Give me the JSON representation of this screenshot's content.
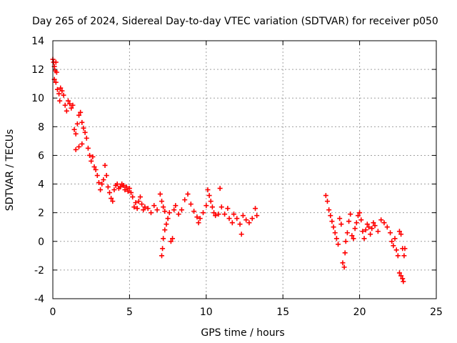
{
  "chart_data": {
    "type": "scatter",
    "title": "Day 265 of 2024, Sidereal Day-to-day VTEC variation (SDTVAR) for receiver p050",
    "xlabel": "GPS time / hours",
    "ylabel": "SDTVAR / TECUs",
    "xlim": [
      0,
      25
    ],
    "ylim": [
      -4,
      14
    ],
    "x_ticks": [
      0,
      5,
      10,
      15,
      20,
      25
    ],
    "x_tick_labels": [
      "0",
      "5",
      "10",
      "15",
      "20",
      "25"
    ],
    "y_ticks": [
      -4,
      -2,
      0,
      2,
      4,
      6,
      8,
      10,
      12,
      14
    ],
    "y_tick_labels": [
      "-4",
      "-2",
      "0",
      "2",
      "4",
      "6",
      "8",
      "10",
      "12",
      "14"
    ],
    "grid": true,
    "marker": "+",
    "marker_color": "#ff0000",
    "series": [
      {
        "name": "SDTVAR",
        "points": [
          [
            0.0,
            12.7
          ],
          [
            0.05,
            12.5
          ],
          [
            0.1,
            12.2
          ],
          [
            0.15,
            11.9
          ],
          [
            0.2,
            12.5
          ],
          [
            0.25,
            11.8
          ],
          [
            0.1,
            11.3
          ],
          [
            0.2,
            11.1
          ],
          [
            0.3,
            10.6
          ],
          [
            0.4,
            10.3
          ],
          [
            0.45,
            9.8
          ],
          [
            0.5,
            10.7
          ],
          [
            0.6,
            10.5
          ],
          [
            0.7,
            10.2
          ],
          [
            0.8,
            9.5
          ],
          [
            0.9,
            9.1
          ],
          [
            1.0,
            9.8
          ],
          [
            1.1,
            9.6
          ],
          [
            1.2,
            9.3
          ],
          [
            1.3,
            9.5
          ],
          [
            1.4,
            7.8
          ],
          [
            1.5,
            7.5
          ],
          [
            1.6,
            8.2
          ],
          [
            1.7,
            8.8
          ],
          [
            1.8,
            9.0
          ],
          [
            1.9,
            8.3
          ],
          [
            2.0,
            7.9
          ],
          [
            1.5,
            6.4
          ],
          [
            1.7,
            6.6
          ],
          [
            1.9,
            6.8
          ],
          [
            2.1,
            7.6
          ],
          [
            2.2,
            7.2
          ],
          [
            2.3,
            6.5
          ],
          [
            2.4,
            6.0
          ],
          [
            2.5,
            5.6
          ],
          [
            2.6,
            5.9
          ],
          [
            2.7,
            5.2
          ],
          [
            2.8,
            5.0
          ],
          [
            2.9,
            4.6
          ],
          [
            3.0,
            4.1
          ],
          [
            3.1,
            3.6
          ],
          [
            3.2,
            4.0
          ],
          [
            3.3,
            4.3
          ],
          [
            3.4,
            5.3
          ],
          [
            3.5,
            4.6
          ],
          [
            3.6,
            3.8
          ],
          [
            3.7,
            3.4
          ],
          [
            3.8,
            3.0
          ],
          [
            3.9,
            2.8
          ],
          [
            4.0,
            3.6
          ],
          [
            4.1,
            3.9
          ],
          [
            4.2,
            4.0
          ],
          [
            4.3,
            3.7
          ],
          [
            4.4,
            3.8
          ],
          [
            4.5,
            4.0
          ],
          [
            4.6,
            3.9
          ],
          [
            4.7,
            3.6
          ],
          [
            4.8,
            3.8
          ],
          [
            4.9,
            3.5
          ],
          [
            5.0,
            3.7
          ],
          [
            5.1,
            3.4
          ],
          [
            5.2,
            3.1
          ],
          [
            5.3,
            2.4
          ],
          [
            5.4,
            2.7
          ],
          [
            5.5,
            2.3
          ],
          [
            5.6,
            2.8
          ],
          [
            5.7,
            3.1
          ],
          [
            5.8,
            2.6
          ],
          [
            5.9,
            2.2
          ],
          [
            6.0,
            2.4
          ],
          [
            6.2,
            2.3
          ],
          [
            6.4,
            2.0
          ],
          [
            6.6,
            2.5
          ],
          [
            6.8,
            2.2
          ],
          [
            7.0,
            3.3
          ],
          [
            7.1,
            2.8
          ],
          [
            7.2,
            2.4
          ],
          [
            7.3,
            2.1
          ],
          [
            7.1,
            -1.0
          ],
          [
            7.15,
            -0.5
          ],
          [
            7.2,
            0.2
          ],
          [
            7.3,
            0.8
          ],
          [
            7.4,
            1.2
          ],
          [
            7.5,
            1.6
          ],
          [
            7.6,
            2.0
          ],
          [
            7.7,
            0.0
          ],
          [
            7.8,
            0.2
          ],
          [
            7.9,
            2.2
          ],
          [
            8.0,
            2.5
          ],
          [
            8.2,
            1.9
          ],
          [
            8.4,
            2.2
          ],
          [
            8.6,
            2.9
          ],
          [
            8.8,
            3.3
          ],
          [
            9.0,
            2.6
          ],
          [
            9.2,
            2.1
          ],
          [
            9.4,
            1.7
          ],
          [
            9.5,
            1.3
          ],
          [
            9.6,
            1.6
          ],
          [
            9.8,
            2.0
          ],
          [
            10.0,
            2.5
          ],
          [
            10.1,
            3.6
          ],
          [
            10.2,
            3.2
          ],
          [
            10.3,
            2.8
          ],
          [
            10.4,
            2.4
          ],
          [
            10.5,
            2.0
          ],
          [
            10.6,
            1.8
          ],
          [
            10.8,
            1.9
          ],
          [
            10.9,
            3.7
          ],
          [
            11.0,
            2.4
          ],
          [
            11.2,
            1.9
          ],
          [
            11.4,
            2.3
          ],
          [
            11.5,
            1.6
          ],
          [
            11.7,
            1.3
          ],
          [
            11.8,
            1.9
          ],
          [
            12.0,
            1.6
          ],
          [
            12.2,
            1.2
          ],
          [
            12.3,
            0.5
          ],
          [
            12.4,
            1.8
          ],
          [
            12.6,
            1.5
          ],
          [
            12.8,
            1.3
          ],
          [
            13.0,
            1.6
          ],
          [
            13.2,
            2.3
          ],
          [
            13.3,
            1.8
          ],
          [
            17.8,
            3.2
          ],
          [
            17.9,
            2.8
          ],
          [
            18.0,
            2.2
          ],
          [
            18.1,
            1.8
          ],
          [
            18.2,
            1.4
          ],
          [
            18.3,
            1.0
          ],
          [
            18.4,
            0.6
          ],
          [
            18.5,
            0.2
          ],
          [
            18.6,
            -0.2
          ],
          [
            18.7,
            1.6
          ],
          [
            18.8,
            1.2
          ],
          [
            18.9,
            -1.5
          ],
          [
            19.0,
            -1.8
          ],
          [
            19.05,
            -0.8
          ],
          [
            19.1,
            0.0
          ],
          [
            19.2,
            0.6
          ],
          [
            19.3,
            1.4
          ],
          [
            19.4,
            1.9
          ],
          [
            19.5,
            0.4
          ],
          [
            19.6,
            0.2
          ],
          [
            19.7,
            0.9
          ],
          [
            19.8,
            1.3
          ],
          [
            19.9,
            1.8
          ],
          [
            20.0,
            2.0
          ],
          [
            20.1,
            1.5
          ],
          [
            20.2,
            0.7
          ],
          [
            20.3,
            0.2
          ],
          [
            20.4,
            0.8
          ],
          [
            20.5,
            1.2
          ],
          [
            20.6,
            1.0
          ],
          [
            20.7,
            0.5
          ],
          [
            20.8,
            0.9
          ],
          [
            20.9,
            1.3
          ],
          [
            21.0,
            1.1
          ],
          [
            21.2,
            0.7
          ],
          [
            21.4,
            1.5
          ],
          [
            21.6,
            1.3
          ],
          [
            21.8,
            1.0
          ],
          [
            22.0,
            0.6
          ],
          [
            22.1,
            0.0
          ],
          [
            22.2,
            -0.3
          ],
          [
            22.3,
            0.2
          ],
          [
            22.4,
            -0.6
          ],
          [
            22.5,
            -1.0
          ],
          [
            22.6,
            0.7
          ],
          [
            22.7,
            0.5
          ],
          [
            22.8,
            -0.5
          ],
          [
            22.9,
            -1.0
          ],
          [
            22.95,
            -0.5
          ],
          [
            22.6,
            -2.2
          ],
          [
            22.7,
            -2.4
          ],
          [
            22.8,
            -2.6
          ],
          [
            22.85,
            -2.8
          ]
        ]
      }
    ]
  }
}
